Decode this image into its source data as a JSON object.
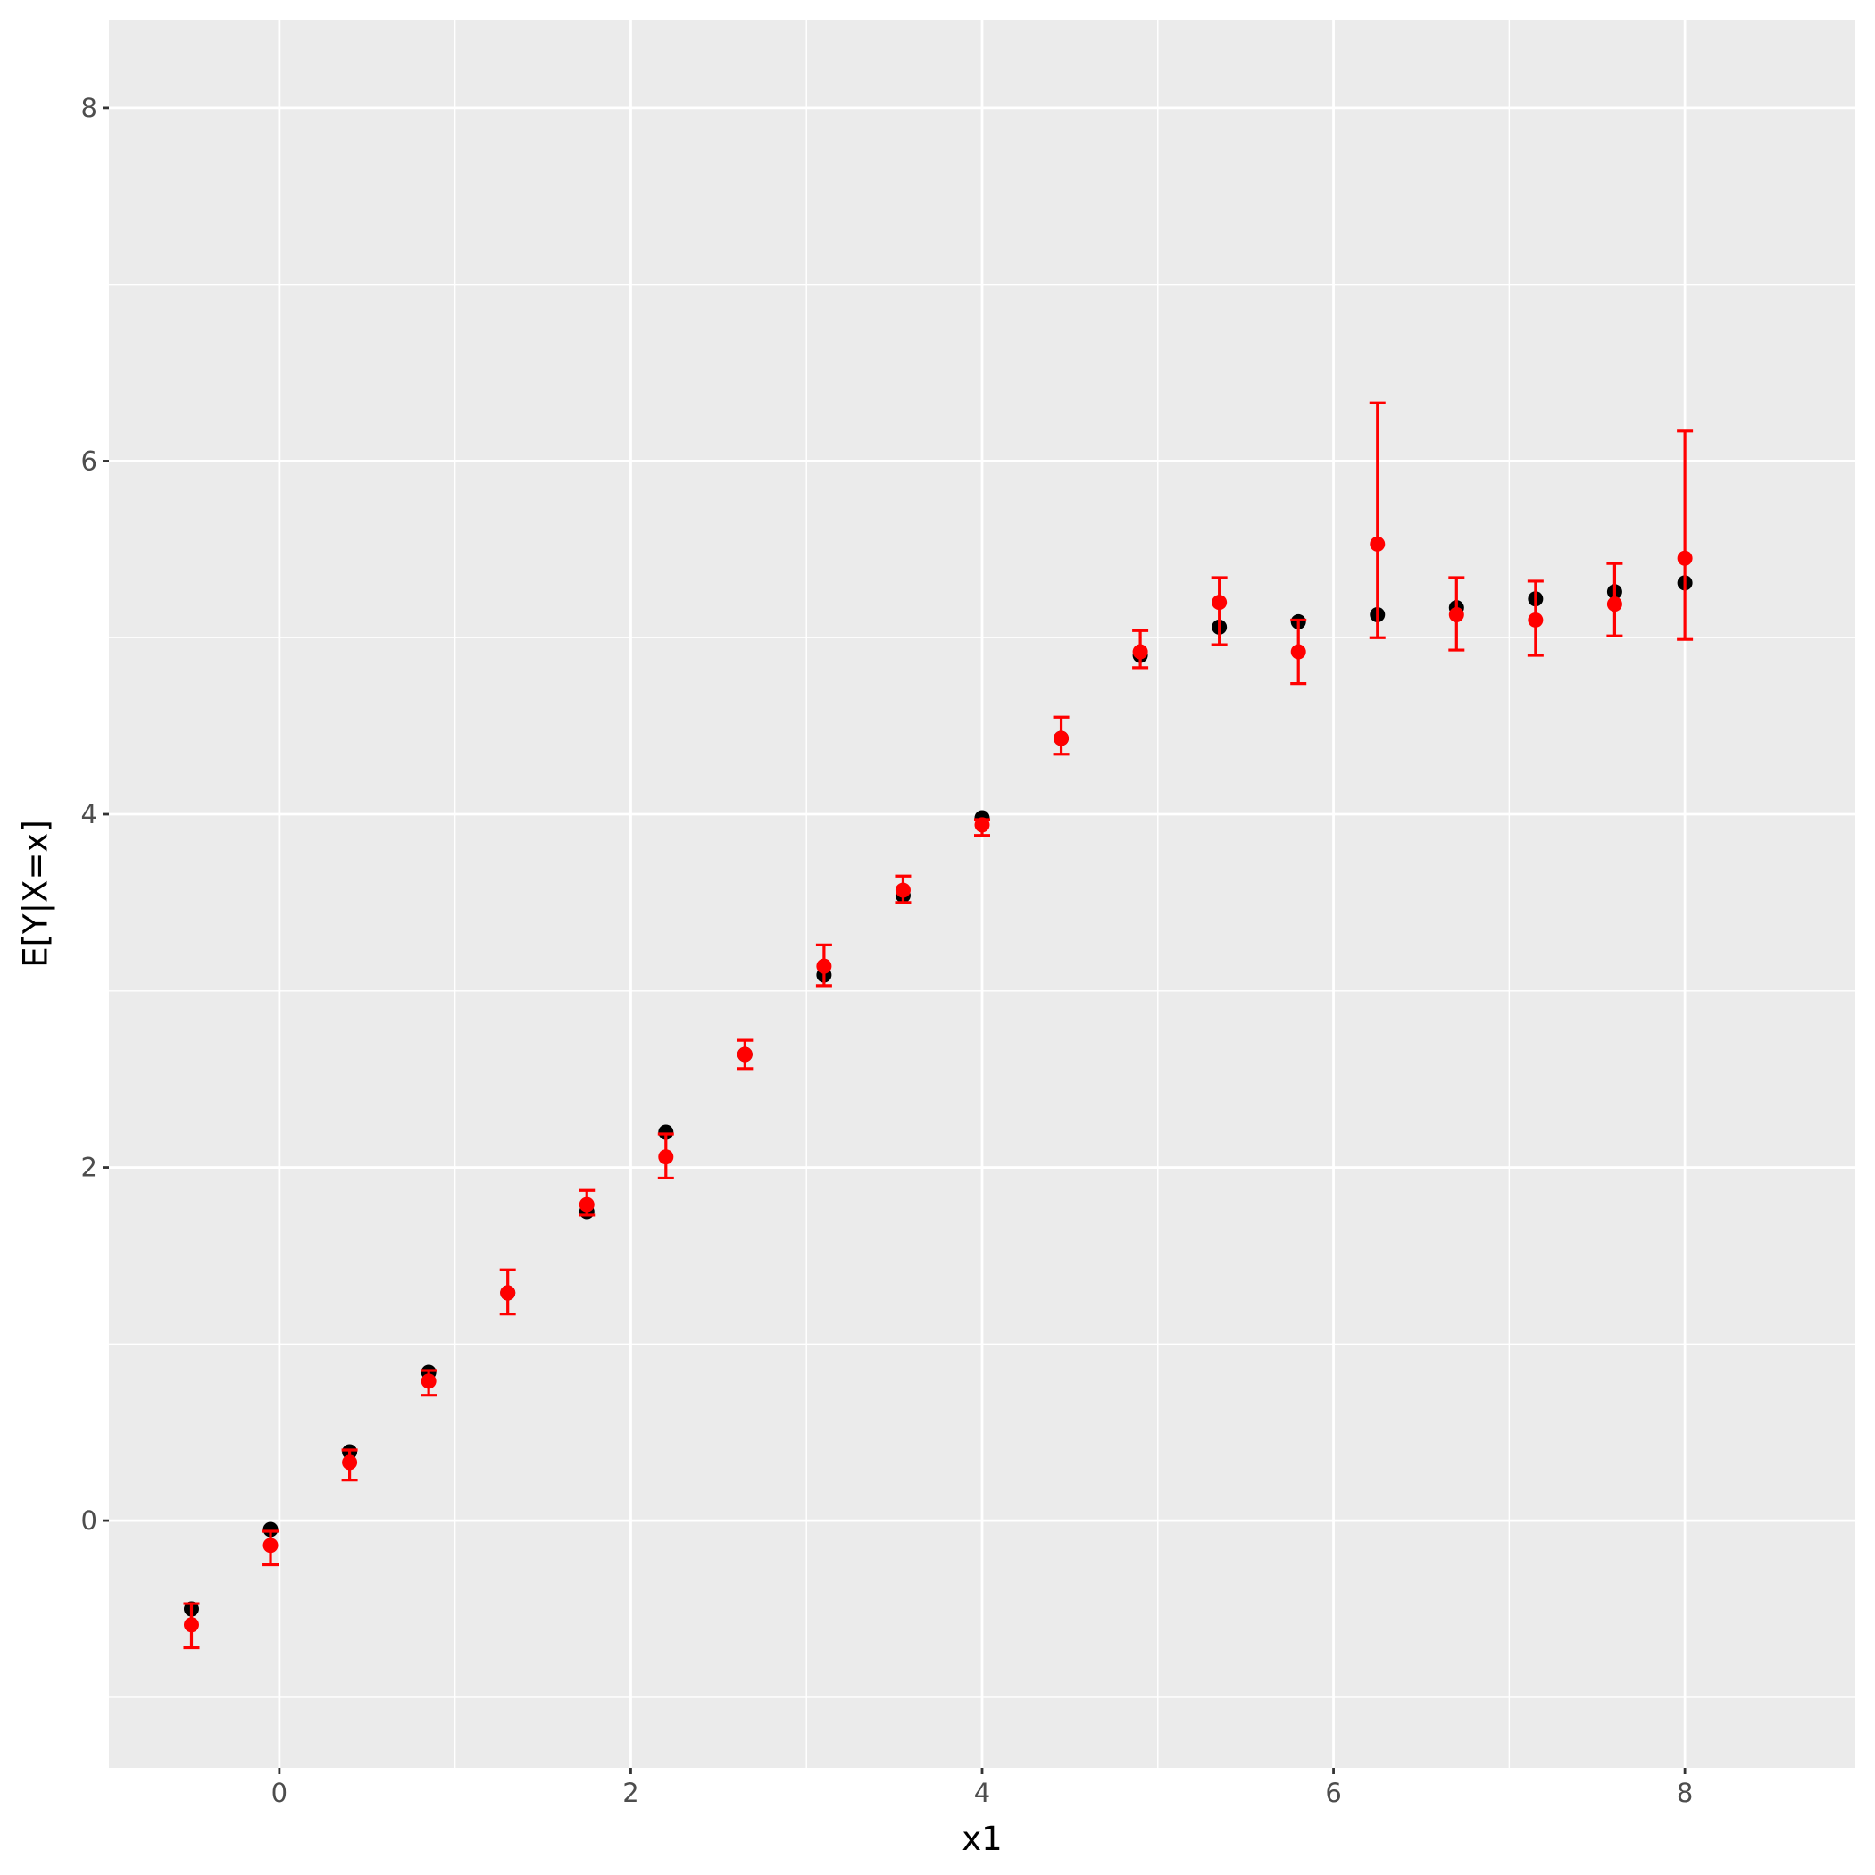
{
  "chart_data": {
    "type": "scatter",
    "title": "",
    "xlabel": "x1",
    "ylabel": "E[Y|X=x]",
    "xlim": [
      -0.97,
      8.97
    ],
    "ylim": [
      -1.4,
      8.5
    ],
    "x_ticks": [
      0,
      2,
      4,
      6,
      8
    ],
    "y_ticks": [
      0,
      2,
      4,
      6,
      8
    ],
    "x_minor_ticks": [
      1,
      3,
      5,
      7
    ],
    "y_minor_ticks": [
      -1,
      1,
      3,
      5,
      7
    ],
    "grid": true,
    "legend": "none",
    "colors": {
      "panel": "#ebebeb",
      "grid": "#ffffff",
      "truth": "#000000",
      "estimate": "#ff0000"
    },
    "series": [
      {
        "color": "#000000",
        "x": [
          -0.5,
          -0.05,
          0.4,
          0.85,
          1.3,
          1.75,
          2.2,
          2.65,
          3.1,
          3.55,
          4.0,
          4.45,
          4.9,
          5.35,
          5.8,
          6.25,
          6.7,
          7.15,
          7.6,
          8.0
        ],
        "y": [
          -0.5,
          -0.05,
          0.39,
          0.84,
          1.29,
          1.75,
          2.2,
          2.64,
          3.09,
          3.54,
          3.98,
          4.43,
          4.9,
          5.06,
          5.09,
          5.13,
          5.17,
          5.22,
          5.26,
          5.31
        ]
      },
      {
        "color": "#ff0000",
        "error_bars": true,
        "x": [
          -0.5,
          -0.05,
          0.4,
          0.85,
          1.3,
          1.75,
          2.2,
          2.65,
          3.1,
          3.55,
          4.0,
          4.45,
          4.9,
          5.35,
          5.8,
          6.25,
          6.7,
          7.15,
          7.6,
          8.0
        ],
        "y": [
          -0.59,
          -0.14,
          0.33,
          0.79,
          1.29,
          1.79,
          2.06,
          2.64,
          3.14,
          3.57,
          3.94,
          4.43,
          4.92,
          5.2,
          4.92,
          5.53,
          5.13,
          5.1,
          5.19,
          5.45
        ],
        "ymin": [
          -0.72,
          -0.25,
          0.23,
          0.71,
          1.17,
          1.73,
          1.94,
          2.56,
          3.03,
          3.5,
          3.88,
          4.34,
          4.83,
          4.96,
          4.74,
          5.0,
          4.93,
          4.9,
          5.01,
          4.99
        ],
        "ymax": [
          -0.47,
          -0.06,
          0.4,
          0.85,
          1.42,
          1.87,
          2.19,
          2.72,
          3.26,
          3.65,
          3.97,
          4.55,
          5.04,
          5.34,
          5.1,
          6.33,
          5.34,
          5.32,
          5.42,
          6.17
        ]
      }
    ]
  }
}
